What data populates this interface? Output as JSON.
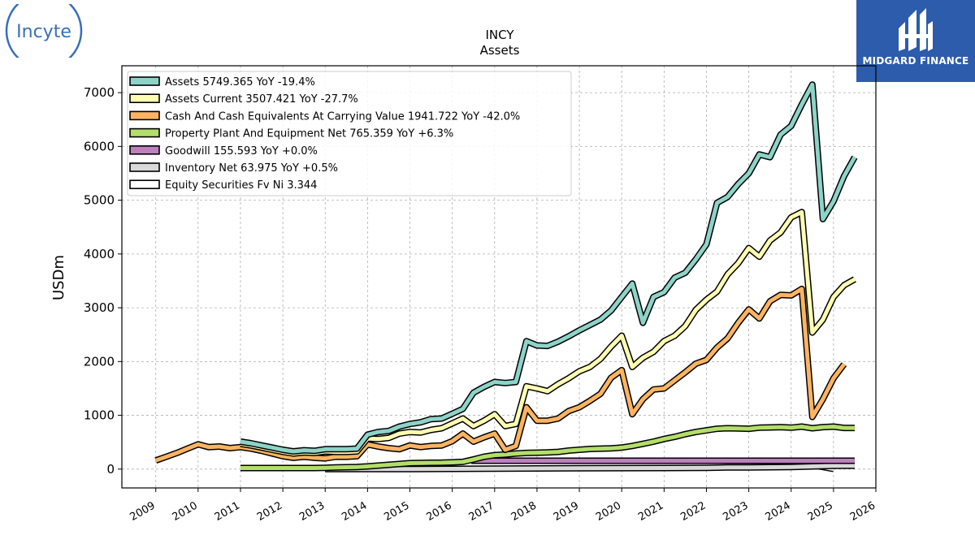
{
  "logos": {
    "left_text": "Incyte",
    "right_text": "MIDGARD FINANCE"
  },
  "colors": {
    "assets": "#8dd3c7",
    "assets_current": "#ffffb3",
    "cash": "#fdb462",
    "ppe": "#b3de69",
    "goodwill": "#bc80bd",
    "inventory": "#d9d9d9",
    "equity_securities": "#ffffff",
    "outline": "#000000",
    "grid": "#b0b0b0",
    "brand_blue": "#2c5cab",
    "incyte_blue": "#3a6fb7"
  },
  "chart_data": {
    "type": "line",
    "title": "INCY",
    "subtitle": "Assets",
    "xlabel": "",
    "ylabel": "USDm",
    "xlim": [
      2008.2,
      2026.0
    ],
    "ylim": [
      -350,
      7500
    ],
    "x_ticks": [
      "2009",
      "2010",
      "2011",
      "2012",
      "2013",
      "2014",
      "2015",
      "2016",
      "2017",
      "2018",
      "2019",
      "2020",
      "2021",
      "2022",
      "2023",
      "2024",
      "2025",
      "2026"
    ],
    "y_ticks": [
      0,
      1000,
      2000,
      3000,
      4000,
      5000,
      6000,
      7000
    ],
    "grid": true,
    "legend_position": "top-left",
    "legend": [
      "Assets  5749.365 YoY -19.4%",
      "Assets Current  3507.421 YoY -27.7%",
      "Cash And Cash Equivalents At Carrying Value  1941.722 YoY -42.0%",
      "Property Plant And Equipment Net  765.359 YoY +6.3%",
      "Goodwill  155.593 YoY +0.0%",
      "Inventory Net  63.975 YoY +0.5%",
      "Equity Securities Fv Ni  3.344"
    ],
    "series": [
      {
        "name": "Assets",
        "color_key": "assets",
        "points": [
          [
            2011.0,
            510
          ],
          [
            2011.25,
            480
          ],
          [
            2011.5,
            440
          ],
          [
            2011.75,
            400
          ],
          [
            2012.0,
            360
          ],
          [
            2012.25,
            330
          ],
          [
            2012.5,
            350
          ],
          [
            2012.75,
            340
          ],
          [
            2013.0,
            370
          ],
          [
            2013.25,
            370
          ],
          [
            2013.5,
            370
          ],
          [
            2013.75,
            380
          ],
          [
            2014.0,
            640
          ],
          [
            2014.25,
            690
          ],
          [
            2014.5,
            710
          ],
          [
            2014.75,
            790
          ],
          [
            2015.0,
            840
          ],
          [
            2015.25,
            870
          ],
          [
            2015.5,
            930
          ],
          [
            2015.75,
            940
          ],
          [
            2016.0,
            1030
          ],
          [
            2016.25,
            1120
          ],
          [
            2016.5,
            1420
          ],
          [
            2016.75,
            1530
          ],
          [
            2017.0,
            1620
          ],
          [
            2017.25,
            1600
          ],
          [
            2017.5,
            1620
          ],
          [
            2017.75,
            2380
          ],
          [
            2018.0,
            2300
          ],
          [
            2018.25,
            2290
          ],
          [
            2018.5,
            2370
          ],
          [
            2018.75,
            2470
          ],
          [
            2019.0,
            2580
          ],
          [
            2019.25,
            2680
          ],
          [
            2019.5,
            2780
          ],
          [
            2019.75,
            2950
          ],
          [
            2020.0,
            3200
          ],
          [
            2020.25,
            3450
          ],
          [
            2020.5,
            2720
          ],
          [
            2020.75,
            3200
          ],
          [
            2021.0,
            3290
          ],
          [
            2021.25,
            3560
          ],
          [
            2021.5,
            3650
          ],
          [
            2021.75,
            3900
          ],
          [
            2022.0,
            4180
          ],
          [
            2022.25,
            4950
          ],
          [
            2022.5,
            5060
          ],
          [
            2022.75,
            5300
          ],
          [
            2023.0,
            5500
          ],
          [
            2023.25,
            5850
          ],
          [
            2023.5,
            5800
          ],
          [
            2023.75,
            6220
          ],
          [
            2024.0,
            6380
          ],
          [
            2024.25,
            6780
          ],
          [
            2024.5,
            7150
          ],
          [
            2024.75,
            4650
          ],
          [
            2025.0,
            4980
          ],
          [
            2025.25,
            5450
          ],
          [
            2025.5,
            5800
          ]
        ]
      },
      {
        "name": "Assets Current",
        "color_key": "assets_current",
        "points": [
          [
            2011.0,
            470
          ],
          [
            2011.25,
            440
          ],
          [
            2011.5,
            400
          ],
          [
            2011.75,
            360
          ],
          [
            2012.0,
            320
          ],
          [
            2012.25,
            290
          ],
          [
            2012.5,
            310
          ],
          [
            2012.75,
            300
          ],
          [
            2013.0,
            330
          ],
          [
            2013.25,
            320
          ],
          [
            2013.5,
            320
          ],
          [
            2013.75,
            330
          ],
          [
            2014.0,
            570
          ],
          [
            2014.25,
            560
          ],
          [
            2014.5,
            580
          ],
          [
            2014.75,
            660
          ],
          [
            2015.0,
            690
          ],
          [
            2015.25,
            680
          ],
          [
            2015.5,
            730
          ],
          [
            2015.75,
            760
          ],
          [
            2016.0,
            850
          ],
          [
            2016.25,
            940
          ],
          [
            2016.5,
            800
          ],
          [
            2016.75,
            900
          ],
          [
            2017.0,
            1020
          ],
          [
            2017.25,
            800
          ],
          [
            2017.5,
            840
          ],
          [
            2017.75,
            1540
          ],
          [
            2018.0,
            1500
          ],
          [
            2018.25,
            1450
          ],
          [
            2018.5,
            1580
          ],
          [
            2018.75,
            1690
          ],
          [
            2019.0,
            1820
          ],
          [
            2019.25,
            1900
          ],
          [
            2019.5,
            2050
          ],
          [
            2019.75,
            2280
          ],
          [
            2020.0,
            2480
          ],
          [
            2020.25,
            1900
          ],
          [
            2020.5,
            2070
          ],
          [
            2020.75,
            2180
          ],
          [
            2021.0,
            2380
          ],
          [
            2021.25,
            2480
          ],
          [
            2021.5,
            2660
          ],
          [
            2021.75,
            2960
          ],
          [
            2022.0,
            3150
          ],
          [
            2022.25,
            3300
          ],
          [
            2022.5,
            3620
          ],
          [
            2022.75,
            3830
          ],
          [
            2023.0,
            4110
          ],
          [
            2023.25,
            3950
          ],
          [
            2023.5,
            4250
          ],
          [
            2023.75,
            4400
          ],
          [
            2024.0,
            4680
          ],
          [
            2024.25,
            4780
          ],
          [
            2024.5,
            2540
          ],
          [
            2024.75,
            2780
          ],
          [
            2025.0,
            3200
          ],
          [
            2025.25,
            3420
          ],
          [
            2025.5,
            3530
          ]
        ]
      },
      {
        "name": "Cash And Cash Equivalents At Carrying Value",
        "color_key": "cash",
        "points": [
          [
            2009.0,
            160
          ],
          [
            2009.25,
            230
          ],
          [
            2009.5,
            300
          ],
          [
            2009.75,
            380
          ],
          [
            2010.0,
            460
          ],
          [
            2010.25,
            410
          ],
          [
            2010.5,
            420
          ],
          [
            2010.75,
            390
          ],
          [
            2011.0,
            410
          ],
          [
            2011.25,
            380
          ],
          [
            2011.5,
            340
          ],
          [
            2011.75,
            290
          ],
          [
            2012.0,
            240
          ],
          [
            2012.25,
            210
          ],
          [
            2012.5,
            230
          ],
          [
            2012.75,
            210
          ],
          [
            2013.0,
            200
          ],
          [
            2013.25,
            230
          ],
          [
            2013.5,
            230
          ],
          [
            2013.75,
            240
          ],
          [
            2014.0,
            460
          ],
          [
            2014.25,
            420
          ],
          [
            2014.5,
            390
          ],
          [
            2014.75,
            370
          ],
          [
            2015.0,
            440
          ],
          [
            2015.25,
            410
          ],
          [
            2015.5,
            430
          ],
          [
            2015.75,
            440
          ],
          [
            2016.0,
            520
          ],
          [
            2016.25,
            660
          ],
          [
            2016.5,
            510
          ],
          [
            2016.75,
            590
          ],
          [
            2017.0,
            660
          ],
          [
            2017.25,
            360
          ],
          [
            2017.5,
            430
          ],
          [
            2017.75,
            1150
          ],
          [
            2018.0,
            900
          ],
          [
            2018.25,
            900
          ],
          [
            2018.5,
            940
          ],
          [
            2018.75,
            1080
          ],
          [
            2019.0,
            1150
          ],
          [
            2019.25,
            1270
          ],
          [
            2019.5,
            1400
          ],
          [
            2019.75,
            1700
          ],
          [
            2020.0,
            1840
          ],
          [
            2020.25,
            1020
          ],
          [
            2020.5,
            1300
          ],
          [
            2020.75,
            1480
          ],
          [
            2021.0,
            1500
          ],
          [
            2021.25,
            1650
          ],
          [
            2021.5,
            1800
          ],
          [
            2021.75,
            1960
          ],
          [
            2022.0,
            2030
          ],
          [
            2022.25,
            2260
          ],
          [
            2022.5,
            2430
          ],
          [
            2022.75,
            2720
          ],
          [
            2023.0,
            2970
          ],
          [
            2023.25,
            2800
          ],
          [
            2023.5,
            3120
          ],
          [
            2023.75,
            3240
          ],
          [
            2024.0,
            3230
          ],
          [
            2024.25,
            3350
          ],
          [
            2024.5,
            970
          ],
          [
            2024.75,
            1300
          ],
          [
            2025.0,
            1690
          ],
          [
            2025.25,
            1950
          ]
        ]
      },
      {
        "name": "Property Plant And Equipment Net",
        "color_key": "ppe",
        "points": [
          [
            2011.0,
            20
          ],
          [
            2011.25,
            20
          ],
          [
            2011.5,
            20
          ],
          [
            2011.75,
            20
          ],
          [
            2012.0,
            20
          ],
          [
            2012.25,
            20
          ],
          [
            2012.5,
            20
          ],
          [
            2012.75,
            20
          ],
          [
            2013.0,
            25
          ],
          [
            2013.25,
            30
          ],
          [
            2013.5,
            35
          ],
          [
            2013.75,
            40
          ],
          [
            2014.0,
            50
          ],
          [
            2014.25,
            65
          ],
          [
            2014.5,
            80
          ],
          [
            2014.75,
            95
          ],
          [
            2015.0,
            110
          ],
          [
            2015.25,
            115
          ],
          [
            2015.5,
            118
          ],
          [
            2015.75,
            120
          ],
          [
            2016.0,
            125
          ],
          [
            2016.25,
            135
          ],
          [
            2016.5,
            180
          ],
          [
            2016.75,
            230
          ],
          [
            2017.0,
            260
          ],
          [
            2017.25,
            270
          ],
          [
            2017.5,
            290
          ],
          [
            2017.75,
            300
          ],
          [
            2018.0,
            305
          ],
          [
            2018.25,
            310
          ],
          [
            2018.5,
            320
          ],
          [
            2018.75,
            345
          ],
          [
            2019.0,
            360
          ],
          [
            2019.25,
            375
          ],
          [
            2019.5,
            380
          ],
          [
            2019.75,
            385
          ],
          [
            2020.0,
            400
          ],
          [
            2020.25,
            430
          ],
          [
            2020.5,
            470
          ],
          [
            2020.75,
            510
          ],
          [
            2021.0,
            560
          ],
          [
            2021.25,
            600
          ],
          [
            2021.5,
            650
          ],
          [
            2021.75,
            690
          ],
          [
            2022.0,
            720
          ],
          [
            2022.25,
            750
          ],
          [
            2022.5,
            760
          ],
          [
            2022.75,
            755
          ],
          [
            2023.0,
            750
          ],
          [
            2023.25,
            770
          ],
          [
            2023.5,
            775
          ],
          [
            2023.75,
            780
          ],
          [
            2024.0,
            770
          ],
          [
            2024.25,
            790
          ],
          [
            2024.5,
            760
          ],
          [
            2024.75,
            780
          ],
          [
            2025.0,
            790
          ],
          [
            2025.25,
            765
          ],
          [
            2025.5,
            765
          ]
        ]
      },
      {
        "name": "Goodwill",
        "color_key": "goodwill",
        "points": [
          [
            2016.45,
            155.593
          ],
          [
            2025.5,
            155.593
          ]
        ]
      },
      {
        "name": "Inventory Net",
        "color_key": "inventory",
        "points": [
          [
            2013.0,
            0
          ],
          [
            2015.0,
            0
          ],
          [
            2017.0,
            10
          ],
          [
            2019.0,
            15
          ],
          [
            2021.0,
            20
          ],
          [
            2022.0,
            25
          ],
          [
            2022.5,
            30
          ],
          [
            2023.0,
            30
          ],
          [
            2023.5,
            35
          ],
          [
            2024.0,
            40
          ],
          [
            2024.5,
            50
          ],
          [
            2025.0,
            60
          ],
          [
            2025.5,
            63.975
          ]
        ]
      },
      {
        "name": "Equity Securities Fv Ni",
        "color_key": "equity_securities",
        "points": [
          [
            2024.5,
            70
          ],
          [
            2024.75,
            40
          ],
          [
            2025.0,
            3.344
          ]
        ]
      }
    ]
  }
}
